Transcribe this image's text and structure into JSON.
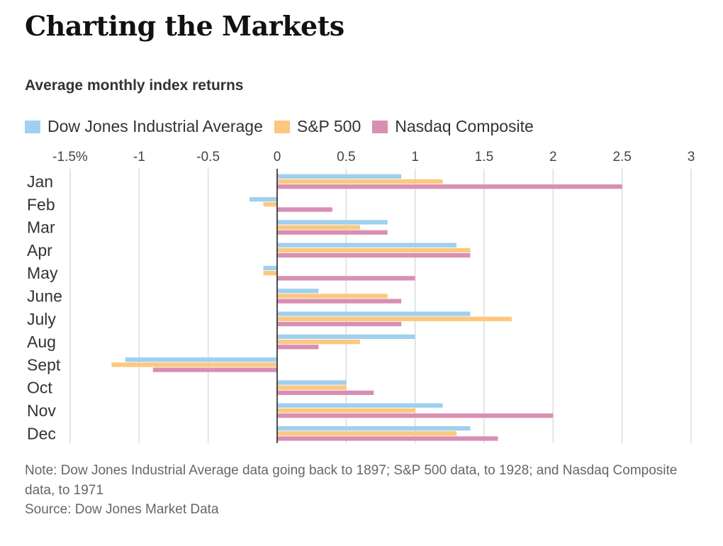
{
  "title": "Charting the Markets",
  "subtitle": "Average monthly index returns",
  "note": "Note: Dow Jones Industrial Average data going back to 1897; S&P 500 data, to 1928; and Nasdaq Composite data, to 1971",
  "source": "Source: Dow Jones Market Data",
  "chart_data": {
    "type": "bar",
    "orientation": "horizontal",
    "categories": [
      "Jan",
      "Feb",
      "Mar",
      "Apr",
      "May",
      "June",
      "July",
      "Aug",
      "Sept",
      "Oct",
      "Nov",
      "Dec"
    ],
    "series": [
      {
        "name": "Dow Jones Industrial Average",
        "color": "#9fd0ef",
        "values": [
          0.9,
          -0.2,
          0.8,
          1.3,
          -0.1,
          0.3,
          1.4,
          1.0,
          -1.1,
          0.5,
          1.2,
          1.4
        ]
      },
      {
        "name": "S&P 500",
        "color": "#fcc77f",
        "values": [
          1.2,
          -0.1,
          0.6,
          1.4,
          -0.1,
          0.8,
          1.7,
          0.6,
          -1.2,
          0.5,
          1.0,
          1.3
        ]
      },
      {
        "name": "Nasdaq Composite",
        "color": "#d88fb3",
        "values": [
          2.5,
          0.4,
          0.8,
          1.4,
          1.0,
          0.9,
          0.9,
          0.3,
          -0.9,
          0.7,
          2.0,
          1.6
        ]
      }
    ],
    "xlim": [
      -1.5,
      3
    ],
    "ticks": [
      -1.5,
      -1,
      -0.5,
      0,
      0.5,
      1,
      1.5,
      2,
      2.5,
      3
    ],
    "tick_labels": [
      "-1.5%",
      "-1",
      "-0.5",
      "0",
      "0.5",
      "1",
      "1.5",
      "2",
      "2.5",
      "3"
    ],
    "tick_position": "top",
    "grid": true,
    "legend_position": "top-left"
  }
}
